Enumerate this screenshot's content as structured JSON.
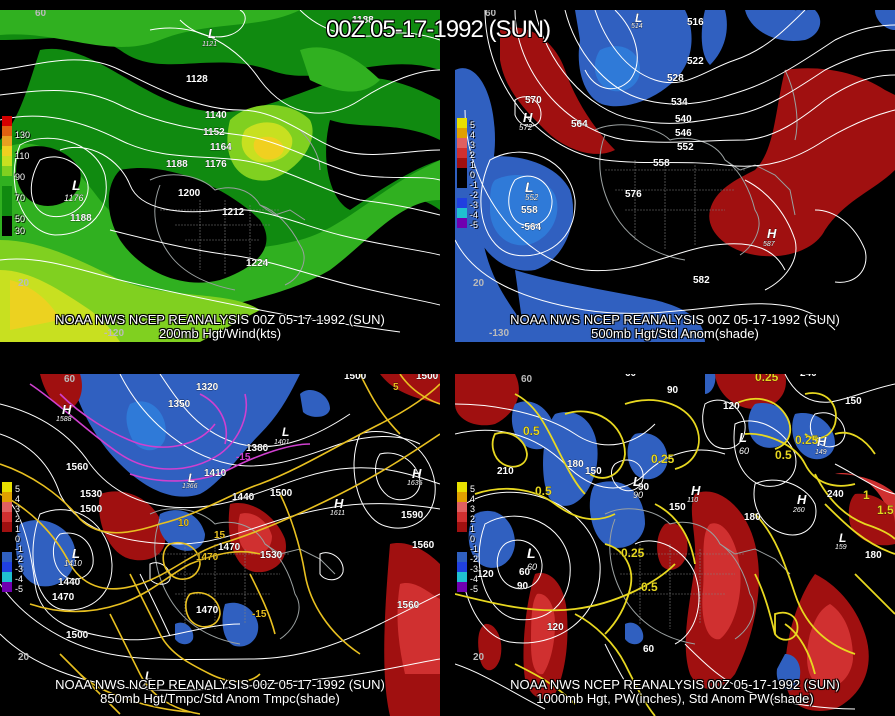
{
  "title": "00Z 05-17-1992 (SUN)",
  "panels": [
    {
      "caption_line1": "NOAA NWS NCEP REANALYSIS 00Z 05-17-1992 (SUN)",
      "caption_line2": "200mb Hgt/Wind(kts)",
      "legend": {
        "labels": [
          "130",
          "110",
          "90",
          "70",
          "50",
          "30"
        ],
        "colors": [
          "#d40000",
          "#e06010",
          "#e8a020",
          "#f0d020",
          "#c8e020",
          "#80d020",
          "#30b020",
          "#108a10"
        ]
      },
      "contour_labels": [
        "1128",
        "1140",
        "1152",
        "1164",
        "1176",
        "1188",
        "1188",
        "1200",
        "1212",
        "1224",
        "1176",
        "1188",
        "1121"
      ],
      "lat_labels": [
        "60",
        "20",
        "-120"
      ],
      "centers": [
        {
          "symbol": "L",
          "value": "1176"
        },
        {
          "symbol": "L",
          "value": "1121"
        }
      ]
    },
    {
      "caption_line1": "NOAA NWS NCEP REANALYSIS 00Z 05-17-1992 (SUN)",
      "caption_line2": "500mb Hgt/Std Anom(shade)",
      "legend": {
        "labels": [
          "5",
          "4",
          "3",
          "2",
          "1",
          "0",
          "-1",
          "-2",
          "-3",
          "-4",
          "-5"
        ],
        "colors": [
          "#e8e000",
          "#e0a000",
          "#e06060",
          "#d03030",
          "#a01010",
          "#000000",
          "#000000",
          "#3060c0",
          "#2040e0",
          "#20c0d0",
          "#7000b0"
        ]
      },
      "contour_labels": [
        "516",
        "522",
        "528",
        "534",
        "540",
        "546",
        "552",
        "558",
        "564",
        "570",
        "572",
        "576",
        "582",
        "552",
        "558",
        "-564",
        "564",
        "587"
      ],
      "lat_labels": [
        "60",
        "20",
        "-130"
      ],
      "centers": [
        {
          "symbol": "H",
          "value": "572"
        },
        {
          "symbol": "L",
          "value": "552"
        },
        {
          "symbol": "H",
          "value": "587"
        },
        {
          "symbol": "L",
          "value": "514"
        }
      ]
    },
    {
      "caption_line1": "NOAA NWS NCEP REANALYSIS 00Z 05-17-1992 (SUN)",
      "caption_line2": "850mb Hgt/Tmpc/Std Anom Tmpc(shade)",
      "legend": {
        "labels": [
          "5",
          "4",
          "3",
          "2",
          "1",
          "0",
          "-1",
          "-2",
          "-3",
          "-4",
          "-5"
        ],
        "colors": [
          "#e8e000",
          "#e0a000",
          "#e06060",
          "#d03030",
          "#a01010",
          "#000000",
          "#000000",
          "#3060c0",
          "#2040e0",
          "#20c0d0",
          "#7000b0"
        ]
      },
      "contour_labels": [
        "1320",
        "1350",
        "1380",
        "1410",
        "1440",
        "1470",
        "1500",
        "1530",
        "1560",
        "1590",
        "1500",
        "1530",
        "1560",
        "1440",
        "1470",
        "1500",
        "1560",
        "1470",
        "1500",
        "1410",
        "1560",
        "5",
        "15",
        "10",
        "-15",
        "1470",
        "15"
      ],
      "lat_labels": [
        "60",
        "20"
      ],
      "centers": [
        {
          "symbol": "H",
          "value": "1588"
        },
        {
          "symbol": "H",
          "value": "1611"
        },
        {
          "symbol": "H",
          "value": "1635"
        },
        {
          "symbol": "L",
          "value": "1410"
        },
        {
          "symbol": "L",
          "value": "1366"
        },
        {
          "symbol": "L",
          "value": "1473"
        },
        {
          "symbol": "L",
          "value": "1401"
        }
      ]
    },
    {
      "caption_line1": "NOAA NWS NCEP REANALYSIS 00Z 05-17-1992 (SUN)",
      "caption_line2": "1000mb Hgt, PW(inches), Std Anom PW(shade)",
      "legend": {
        "labels": [
          "5",
          "4",
          "3",
          "2",
          "1",
          "0",
          "-1",
          "-2",
          "-3",
          "-4",
          "-5"
        ],
        "colors": [
          "#e8e000",
          "#e0a000",
          "#e06060",
          "#d03030",
          "#a01010",
          "#000000",
          "#000000",
          "#3060c0",
          "#2040e0",
          "#20c0d0",
          "#7000b0"
        ]
      },
      "contour_labels": [
        "60",
        "90",
        "120",
        "150",
        "180",
        "210",
        "240",
        "120",
        "150",
        "180",
        "90",
        "60",
        "120",
        "150",
        "180",
        "90",
        "60",
        "0.25",
        "0.5",
        "0.5",
        "0.25",
        "0.5",
        "1",
        "1.5",
        "0.25",
        "0.25",
        "0.5"
      ],
      "lat_labels": [
        "60",
        "20"
      ],
      "centers": [
        {
          "symbol": "L",
          "value": "60"
        },
        {
          "symbol": "L",
          "value": "90"
        },
        {
          "symbol": "H",
          "value": "110"
        },
        {
          "symbol": "L",
          "value": "60"
        },
        {
          "symbol": "H",
          "value": "260"
        },
        {
          "symbol": "L",
          "value": "159"
        },
        {
          "symbol": "H",
          "value": "149"
        }
      ]
    }
  ]
}
